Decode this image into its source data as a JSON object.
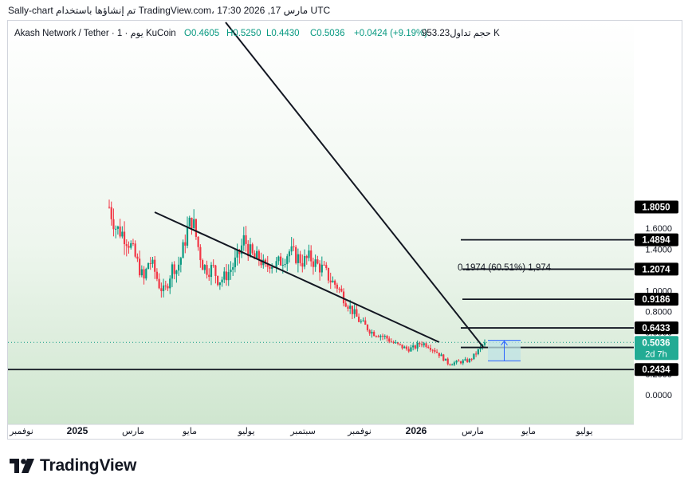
{
  "header": {
    "caption": "Sally-chart تم إنشاؤها باستخدام TradingView.com، 17:30 2026 ,17 مارس UTC"
  },
  "legend": {
    "symbol": "Akash Network / Tether · 1 · يوم KuCoin",
    "o": "O0.4605",
    "h": "H0.5250",
    "l": "L0.4430",
    "c": "C0.5036",
    "change": "+0.0424 (+9.19%)",
    "volume": "حجم تداول953.23 K"
  },
  "measure": {
    "label": "0.1974 (60.51%) 1,974"
  },
  "price_tags": {
    "last_price": "0.5036",
    "countdown": "2d 7h"
  },
  "brand": {
    "name": "TradingView"
  },
  "colors": {
    "up": "#089981",
    "down": "#f23645",
    "background_fill": "#cfe6cf",
    "measure_fill": "#bfe3e6",
    "measure_line": "#2962ff",
    "tag_bg": "#000000",
    "last_price_bg": "#22ab94"
  },
  "chart_data": {
    "type": "candlestick",
    "y_axis": {
      "min": 0.0,
      "max": 1.805,
      "scale": "linear",
      "ticks": [
        0.0,
        0.2,
        0.4,
        0.6,
        0.8,
        1.0,
        1.2,
        1.4,
        1.6
      ],
      "tick_labels": [
        "0.0000",
        "0.2000",
        "0.4000",
        "0.6000",
        "0.8000",
        "1.0000",
        "1.2000",
        "1.4000",
        "1.6000"
      ]
    },
    "x_axis": {
      "tick_labels": [
        "نوفمبر",
        "2025",
        "مارس",
        "مايو",
        "يوليو",
        "سبتمبر",
        "نوفمبر",
        "2026",
        "مارس",
        "مايو",
        "يوليو"
      ],
      "bold_labels": [
        "2025",
        "2026"
      ]
    },
    "horizontal_levels": [
      {
        "value": 1.805,
        "label": "1.8050"
      },
      {
        "value": 1.4894,
        "label": "1.4894"
      },
      {
        "value": 1.2074,
        "label": "1.2074"
      },
      {
        "value": 0.9186,
        "label": "0.9186"
      },
      {
        "value": 0.6433,
        "label": "0.6433"
      },
      {
        "value": 0.4553,
        "label": "0.4553"
      },
      {
        "value": 0.2434,
        "label": "0.2434"
      }
    ],
    "last_price": 0.5036,
    "trendlines": [
      "upper descending trendline",
      "lower descending trendline"
    ],
    "ohlc_last": {
      "open": 0.4605,
      "high": 0.525,
      "low": 0.443,
      "close": 0.5036,
      "change": 0.0424,
      "change_pct": 9.19
    },
    "measure": {
      "from": 0.3262,
      "to": 0.5236,
      "delta": 0.1974,
      "pct": 60.51,
      "bars": 1974
    },
    "grid": false,
    "legend_position": "top-left",
    "path_points": [
      [
        0.0,
        1.805
      ],
      [
        0.04,
        1.6
      ],
      [
        0.08,
        1.55
      ],
      [
        0.12,
        1.45
      ],
      [
        0.16,
        1.28
      ],
      [
        0.2,
        1.1
      ],
      [
        0.23,
        1.3
      ],
      [
        0.26,
        1.2
      ],
      [
        0.29,
        1.05
      ],
      [
        0.32,
        0.98
      ],
      [
        0.35,
        1.15
      ],
      [
        0.37,
        1.25
      ],
      [
        0.39,
        1.2
      ],
      [
        0.42,
        1.35
      ],
      [
        0.45,
        1.58
      ],
      [
        0.48,
        1.7
      ],
      [
        0.51,
        1.45
      ],
      [
        0.54,
        1.25
      ],
      [
        0.57,
        1.2
      ],
      [
        0.6,
        1.22
      ],
      [
        0.63,
        1.1
      ],
      [
        0.66,
        1.12
      ],
      [
        0.69,
        1.18
      ],
      [
        0.72,
        1.25
      ],
      [
        0.75,
        1.35
      ],
      [
        0.78,
        1.5
      ],
      [
        0.81,
        1.38
      ],
      [
        0.84,
        1.3
      ],
      [
        0.87,
        1.32
      ],
      [
        0.9,
        1.2
      ],
      [
        0.93,
        1.28
      ],
      [
        0.96,
        1.24
      ],
      [
        1.0,
        1.3
      ],
      [
        1.04,
        1.38
      ],
      [
        1.08,
        1.33
      ],
      [
        1.12,
        1.28
      ],
      [
        1.16,
        1.32
      ],
      [
        1.2,
        1.25
      ],
      [
        1.24,
        1.2
      ],
      [
        1.28,
        1.1
      ],
      [
        1.32,
        1.04
      ],
      [
        1.36,
        0.92
      ],
      [
        1.4,
        0.82
      ],
      [
        1.44,
        0.72
      ],
      [
        1.48,
        0.66
      ],
      [
        1.52,
        0.6
      ],
      [
        1.56,
        0.58
      ],
      [
        1.6,
        0.55
      ],
      [
        1.64,
        0.5
      ],
      [
        1.68,
        0.47
      ],
      [
        1.72,
        0.44
      ],
      [
        1.76,
        0.45
      ],
      [
        1.8,
        0.5
      ],
      [
        1.84,
        0.48
      ],
      [
        1.88,
        0.43
      ],
      [
        1.92,
        0.37
      ],
      [
        1.96,
        0.3
      ],
      [
        2.0,
        0.31
      ],
      [
        2.04,
        0.32
      ],
      [
        2.08,
        0.33
      ],
      [
        2.11,
        0.38
      ],
      [
        2.13,
        0.42
      ],
      [
        2.15,
        0.46
      ],
      [
        2.17,
        0.5036
      ]
    ]
  }
}
